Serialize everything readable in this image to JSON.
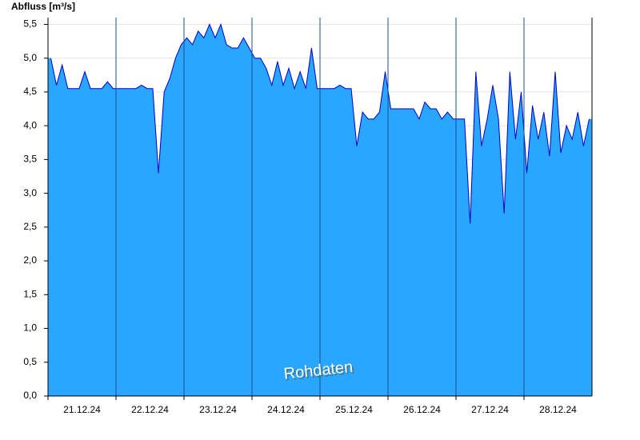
{
  "chart_data": {
    "type": "area",
    "y_label": "Abfluss [m³/s]",
    "watermark": "Rohdaten",
    "categories": [
      "21.12.24",
      "22.12.24",
      "23.12.24",
      "24.12.24",
      "25.12.24",
      "26.12.24",
      "27.12.24",
      "28.12.24"
    ],
    "values": [
      [
        5.0,
        4.6,
        4.9,
        4.55,
        4.55,
        4.55,
        4.8,
        4.55,
        4.55,
        4.55,
        4.65,
        4.55
      ],
      [
        4.55,
        4.55,
        4.55,
        4.55,
        4.6,
        4.55,
        4.55,
        3.3,
        4.5,
        4.7,
        5.0,
        5.2
      ],
      [
        5.3,
        5.2,
        5.4,
        5.3,
        5.5,
        5.3,
        5.5,
        5.2,
        5.15,
        5.15,
        5.3,
        5.15
      ],
      [
        5.0,
        5.0,
        4.85,
        4.6,
        4.95,
        4.6,
        4.85,
        4.55,
        4.8,
        4.55,
        5.15,
        4.55
      ],
      [
        4.55,
        4.55,
        4.55,
        4.6,
        4.55,
        4.55,
        3.7,
        4.2,
        4.1,
        4.1,
        4.2,
        4.8
      ],
      [
        4.25,
        4.25,
        4.25,
        4.25,
        4.25,
        4.1,
        4.35,
        4.25,
        4.25,
        4.1,
        4.2,
        4.1
      ],
      [
        4.1,
        4.1,
        2.55,
        4.8,
        3.7,
        4.1,
        4.6,
        4.1,
        2.7,
        4.8,
        3.8,
        4.5
      ],
      [
        3.3,
        4.3,
        3.8,
        4.2,
        3.55,
        4.8,
        3.6,
        4.0,
        3.8,
        4.2,
        3.7,
        4.1
      ]
    ],
    "color": "#29a6ff",
    "line_color": "#0000cc",
    "ylim": [
      0,
      5.6
    ],
    "yticks": [
      {
        "value": 0,
        "label": "0,0"
      },
      {
        "value": 0.5,
        "label": "0,5"
      },
      {
        "value": 1,
        "label": "1,0"
      },
      {
        "value": 1.5,
        "label": "1,5"
      },
      {
        "value": 2,
        "label": "2,0"
      },
      {
        "value": 2.5,
        "label": "2,5"
      },
      {
        "value": 3,
        "label": "3,0"
      },
      {
        "value": 3.5,
        "label": "3,5"
      },
      {
        "value": 4,
        "label": "4,0"
      },
      {
        "value": 4.5,
        "label": "4,5"
      },
      {
        "value": 5,
        "label": "5,0"
      },
      {
        "value": 5.5,
        "label": "5,5"
      }
    ],
    "grid": true
  }
}
